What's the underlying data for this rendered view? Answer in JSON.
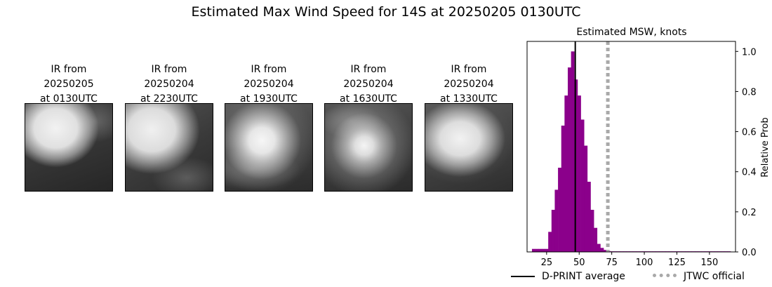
{
  "suptitle": "Estimated Max Wind Speed for 14S at 20250205 0130UTC",
  "ir_panels": [
    {
      "line1": "IR from",
      "line2": "20250205",
      "line3": "at 0130UTC"
    },
    {
      "line1": "IR from",
      "line2": "20250204",
      "line3": "at 2230UTC"
    },
    {
      "line1": "IR from",
      "line2": "20250204",
      "line3": "at 1930UTC"
    },
    {
      "line1": "IR from",
      "line2": "20250204",
      "line3": "at 1630UTC"
    },
    {
      "line1": "IR from",
      "line2": "20250204",
      "line3": "at 1330UTC"
    }
  ],
  "legend": {
    "dprint_label": "D-PRINT average",
    "jtwc_label": "JTWC official"
  },
  "colors": {
    "bars": "#8b008b",
    "dprint_line": "#000000",
    "jtwc_line": "#a9a9a9"
  },
  "chart_data": {
    "type": "bar",
    "title": "Estimated MSW, knots",
    "ylabel": "Relative Prob",
    "xlim": [
      10,
      170
    ],
    "ylim": [
      0,
      1.05
    ],
    "x_ticks": [
      25,
      50,
      75,
      100,
      125,
      150
    ],
    "y_ticks": [
      0.0,
      0.2,
      0.4,
      0.6,
      0.8,
      1.0
    ],
    "y_tick_labels": [
      "0.0",
      "0.2",
      "0.4",
      "0.6",
      "0.8",
      "1.0"
    ],
    "y_axis_side": "right",
    "bin_width": 2.5,
    "bins": [
      [
        15,
        0.015
      ],
      [
        17.5,
        0.015
      ],
      [
        20,
        0.015
      ],
      [
        22.5,
        0.015
      ],
      [
        25,
        0.015
      ],
      [
        27.5,
        0.1
      ],
      [
        30,
        0.21
      ],
      [
        32.5,
        0.31
      ],
      [
        35,
        0.42
      ],
      [
        37.5,
        0.63
      ],
      [
        40,
        0.78
      ],
      [
        42.5,
        0.92
      ],
      [
        45,
        1.0
      ],
      [
        47.5,
        0.86
      ],
      [
        50,
        0.78
      ],
      [
        52.5,
        0.66
      ],
      [
        55,
        0.53
      ],
      [
        57.5,
        0.35
      ],
      [
        60,
        0.21
      ],
      [
        62.5,
        0.12
      ],
      [
        65,
        0.04
      ],
      [
        67.5,
        0.02
      ],
      [
        70,
        0.01
      ],
      [
        72.5,
        0.005
      ],
      [
        75,
        0.003
      ],
      [
        77.5,
        0.003
      ],
      [
        80,
        0.003
      ],
      [
        82.5,
        0.003
      ],
      [
        85,
        0.003
      ],
      [
        87.5,
        0.003
      ],
      [
        90,
        0.003
      ],
      [
        92.5,
        0.003
      ],
      [
        95,
        0.003
      ],
      [
        97.5,
        0.003
      ],
      [
        100,
        0.003
      ],
      [
        102.5,
        0.003
      ],
      [
        105,
        0.003
      ],
      [
        107.5,
        0.003
      ],
      [
        110,
        0.003
      ],
      [
        112.5,
        0.003
      ],
      [
        115,
        0.003
      ],
      [
        117.5,
        0.003
      ],
      [
        120,
        0.003
      ],
      [
        122.5,
        0.003
      ],
      [
        125,
        0.003
      ],
      [
        127.5,
        0.003
      ],
      [
        130,
        0.003
      ],
      [
        132.5,
        0.003
      ],
      [
        135,
        0.003
      ],
      [
        137.5,
        0.003
      ],
      [
        140,
        0.003
      ],
      [
        142.5,
        0.003
      ],
      [
        145,
        0.003
      ],
      [
        147.5,
        0.003
      ],
      [
        150,
        0.003
      ],
      [
        152.5,
        0.003
      ],
      [
        155,
        0.003
      ],
      [
        157.5,
        0.003
      ],
      [
        160,
        0.003
      ],
      [
        162.5,
        0.003
      ],
      [
        165,
        0.003
      ]
    ],
    "dprint_average": 47,
    "jtwc_official": 72
  }
}
